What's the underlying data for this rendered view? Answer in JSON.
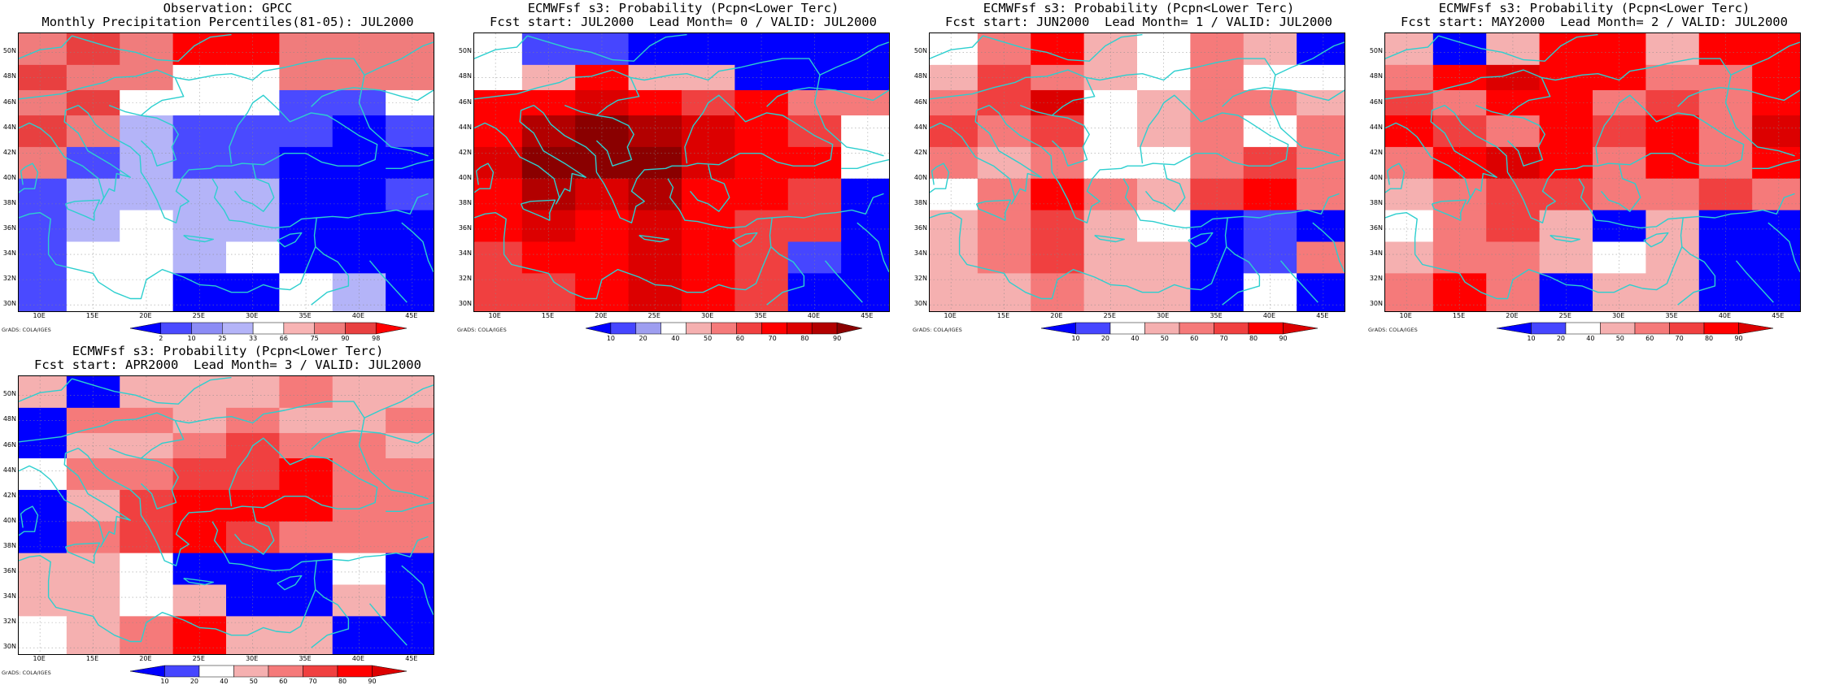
{
  "panels": [
    {
      "id": "obs",
      "title": "Observation: GPCC",
      "subtitle": "Monthly Precipitation Percentiles(81-05): JUL2000",
      "colorbar_labels": [
        "2",
        "10",
        "25",
        "33",
        "66",
        "75",
        "90",
        "98"
      ],
      "palette": {
        "A": "#0000ff",
        "B": "#4a4aff",
        "C": "#8c8cf5",
        "D": "#b4b4f8",
        "W": "#ffffff",
        "E": "#f8b4b4",
        "F": "#f07c7c",
        "G": "#e84040",
        "H": "#ff0000"
      },
      "grid": [
        "FGFHHFFF",
        "GFFWWFFF",
        "FGWWWBBW",
        "GFDBBBAB",
        "FBDBBAAA",
        "BDDDDAAB",
        "BDWDDAAA",
        "BWWDWAAA",
        "BWWAAWDA"
      ]
    },
    {
      "id": "lead0",
      "title": "ECMWFsf s3: Probability (Pcpn<Lower Terc)",
      "subtitle": "Fcst start: JUL2000  Lead Month= 0 / VALID: JUL2000",
      "colorbar_labels": [
        "10",
        "20",
        "40",
        "50",
        "60",
        "70",
        "80",
        "90"
      ],
      "palette": {
        "A": "#0000ff",
        "B": "#4646ff",
        "C": "#9e9ef0",
        "W": "#ffffff",
        "E": "#f5b0b0",
        "F": "#f57a7a",
        "G": "#f04040",
        "H": "#ff0000",
        "I": "#dc0000",
        "J": "#b20000",
        "K": "#8a0000"
      },
      "grid": [
        "WBBAAAAA",
        "WEHEEAAA",
        "HHIHGHFF",
        "HJKJIHGW",
        "IKKKIHHW",
        "HJIJHHGA",
        "HIHIHGGA",
        "GHHIHGBA",
        "GGHIHGAA"
      ]
    },
    {
      "id": "lead1",
      "title": "ECMWFsf s3: Probability (Pcpn<Lower Terc)",
      "subtitle": "Fcst start: JUN2000  Lead Month= 1 / VALID: JUL2000",
      "colorbar_labels": [
        "10",
        "20",
        "40",
        "50",
        "60",
        "70",
        "80",
        "90"
      ],
      "palette": {
        "A": "#0000ff",
        "B": "#4646ff",
        "W": "#ffffff",
        "E": "#f5b0b0",
        "F": "#f57a7a",
        "G": "#f04040",
        "H": "#ff0000",
        "I": "#dc0000"
      },
      "grid": [
        "WFHEWFEA",
        "EGFEWFWW",
        "FGIWEFFE",
        "GFGWEFWF",
        "FEFWWFGF",
        "WFHFEGHF",
        "EFGEWABA",
        "EFGEEABF",
        "EEFEEAWA"
      ]
    },
    {
      "id": "lead2",
      "title": "ECMWFsf s3: Probability (Pcpn<Lower Terc)",
      "subtitle": "Fcst start: MAY2000  Lead Month= 2 / VALID: JUL2000",
      "colorbar_labels": [
        "10",
        "20",
        "40",
        "50",
        "60",
        "70",
        "80",
        "90"
      ],
      "palette": {
        "A": "#0000ff",
        "B": "#4646ff",
        "W": "#ffffff",
        "E": "#f5b0b0",
        "F": "#f57a7a",
        "G": "#f04040",
        "H": "#ff0000",
        "I": "#dc0000"
      },
      "grid": [
        "EAEHHEHH",
        "FHIHHFFH",
        "GFHHFGFH",
        "HGFHGHFI",
        "FHIHFHFH",
        "EFGGFFGF",
        "WFGEAEAA",
        "EFFEWEAA",
        "FHFAEEAA"
      ]
    },
    {
      "id": "lead3",
      "title": "ECMWFsf s3: Probability (Pcpn<Lower Terc)",
      "subtitle": "Fcst start: APR2000  Lead Month= 3 / VALID: JUL2000",
      "colorbar_labels": [
        "10",
        "20",
        "40",
        "50",
        "60",
        "70",
        "80",
        "90"
      ],
      "palette": {
        "A": "#0000ff",
        "B": "#4646ff",
        "W": "#ffffff",
        "E": "#f5b0b0",
        "F": "#f57a7a",
        "G": "#f04040",
        "H": "#ff0000",
        "I": "#dc0000"
      },
      "grid": [
        "EAEEEFEE",
        "AFFEFEEF",
        "AEEFGFFE",
        "WFFGGHFF",
        "AEGHHHFF",
        "AFGHGFFF",
        "EEWAAAWA",
        "EEWEAAEA",
        "WEFHEEAA"
      ]
    }
  ],
  "lat_labels": [
    "50N",
    "48N",
    "46N",
    "44N",
    "42N",
    "40N",
    "38N",
    "36N",
    "34N",
    "32N",
    "30N"
  ],
  "lon_labels": [
    "10E",
    "15E",
    "20E",
    "25E",
    "30E",
    "35E",
    "40E",
    "45E"
  ],
  "credit": "GrADS: COLA/IGES",
  "coast_color": "#2dcfcf"
}
